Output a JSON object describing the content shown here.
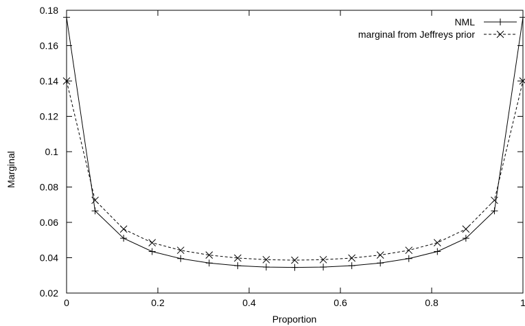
{
  "chart_data": {
    "type": "line",
    "title": "",
    "xlabel": "Proportion",
    "ylabel": "Marginal",
    "xlim": [
      0,
      1
    ],
    "ylim": [
      0.02,
      0.18
    ],
    "xticks": [
      0,
      0.2,
      0.4,
      0.6,
      0.8,
      1
    ],
    "xtick_labels": [
      "0",
      "0.2",
      "0.4",
      "0.6",
      "0.8",
      "1"
    ],
    "yticks": [
      0.02,
      0.04,
      0.06,
      0.08,
      0.1,
      0.12,
      0.14,
      0.16,
      0.18
    ],
    "ytick_labels": [
      "0.02",
      "0.04",
      "0.06",
      "0.08",
      "0.1",
      "0.12",
      "0.14",
      "0.16",
      "0.18"
    ],
    "grid": false,
    "legend_position": "top-right",
    "x": [
      0,
      0.0625,
      0.125,
      0.1875,
      0.25,
      0.3125,
      0.375,
      0.4375,
      0.5,
      0.5625,
      0.625,
      0.6875,
      0.75,
      0.8125,
      0.875,
      0.9375,
      1
    ],
    "series": [
      {
        "name": "NML",
        "line_style": "solid",
        "marker": "plus",
        "color": "#000000",
        "values": [
          0.176,
          0.0665,
          0.051,
          0.0435,
          0.0395,
          0.037,
          0.0355,
          0.0347,
          0.0345,
          0.0347,
          0.0355,
          0.037,
          0.0395,
          0.0435,
          0.051,
          0.0665,
          0.176
        ]
      },
      {
        "name": "marginal from Jeffreys prior",
        "line_style": "dashed",
        "marker": "x",
        "color": "#000000",
        "values": [
          0.14,
          0.0725,
          0.0562,
          0.0485,
          0.0442,
          0.0415,
          0.0398,
          0.0389,
          0.0386,
          0.0389,
          0.0398,
          0.0415,
          0.0442,
          0.0485,
          0.0562,
          0.0725,
          0.14
        ]
      }
    ]
  }
}
